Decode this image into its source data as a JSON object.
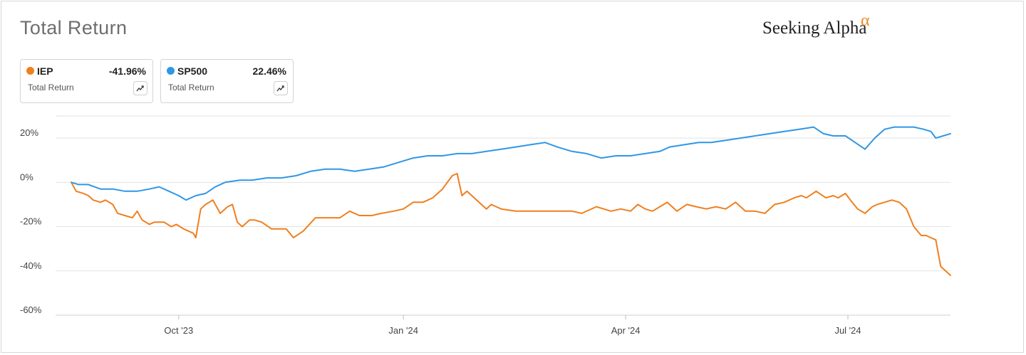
{
  "header": {
    "title": "Total Return",
    "brand": "Seeking Alpha",
    "brand_mark": "α"
  },
  "legend": [
    {
      "ticker": "IEP",
      "value": "-41.96%",
      "subtitle": "Total Return",
      "color": "#f07f1f",
      "button_icon": "trend-chart-icon"
    },
    {
      "ticker": "SP500",
      "value": "22.46%",
      "subtitle": "Total Return",
      "color": "#2f97e6",
      "button_icon": "trend-chart-icon"
    }
  ],
  "chart_data": {
    "type": "line",
    "title": "Total Return",
    "y_unit": "%",
    "ylim": [
      -60,
      30
    ],
    "y_ticks": [
      20,
      0,
      -20,
      -40,
      -60
    ],
    "y_tick_labels": [
      "20%",
      "0%",
      "-20%",
      "-40%",
      "-60%"
    ],
    "xlim": [
      "2023-08-18",
      "2024-08-12"
    ],
    "x_ticks": [
      "2023-10-01",
      "2024-01-01",
      "2024-04-01",
      "2024-07-01"
    ],
    "x_tick_labels": [
      "Oct '23",
      "Jan '24",
      "Apr '24",
      "Jul '24"
    ],
    "grid": true,
    "series": [
      {
        "name": "IEP",
        "color": "#f07f1f",
        "x": [
          "2023-08-18",
          "2023-08-20",
          "2023-08-23",
          "2023-08-25",
          "2023-08-27",
          "2023-08-30",
          "2023-09-01",
          "2023-09-04",
          "2023-09-06",
          "2023-09-09",
          "2023-09-12",
          "2023-09-14",
          "2023-09-16",
          "2023-09-19",
          "2023-09-21",
          "2023-09-23",
          "2023-09-25",
          "2023-09-28",
          "2023-09-30",
          "2023-10-03",
          "2023-10-05",
          "2023-10-07",
          "2023-10-08",
          "2023-10-10",
          "2023-10-12",
          "2023-10-15",
          "2023-10-18",
          "2023-10-21",
          "2023-10-23",
          "2023-10-25",
          "2023-10-27",
          "2023-10-30",
          "2023-11-01",
          "2023-11-04",
          "2023-11-08",
          "2023-11-14",
          "2023-11-17",
          "2023-11-21",
          "2023-11-26",
          "2023-11-28",
          "2023-12-02",
          "2023-12-06",
          "2023-12-10",
          "2023-12-14",
          "2023-12-19",
          "2023-12-23",
          "2023-12-28",
          "2024-01-01",
          "2024-01-05",
          "2024-01-09",
          "2024-01-13",
          "2024-01-17",
          "2024-01-21",
          "2024-01-23",
          "2024-01-25",
          "2024-01-27",
          "2024-01-31",
          "2024-02-04",
          "2024-02-06",
          "2024-02-10",
          "2024-02-16",
          "2024-02-22",
          "2024-02-28",
          "2024-03-05",
          "2024-03-10",
          "2024-03-14",
          "2024-03-20",
          "2024-03-26",
          "2024-03-30",
          "2024-04-03",
          "2024-04-06",
          "2024-04-09",
          "2024-04-12",
          "2024-04-15",
          "2024-04-18",
          "2024-04-22",
          "2024-04-26",
          "2024-04-30",
          "2024-05-04",
          "2024-05-08",
          "2024-05-12",
          "2024-05-16",
          "2024-05-20",
          "2024-05-24",
          "2024-05-28",
          "2024-06-01",
          "2024-06-05",
          "2024-06-09",
          "2024-06-12",
          "2024-06-14",
          "2024-06-18",
          "2024-06-22",
          "2024-06-25",
          "2024-06-27",
          "2024-06-30",
          "2024-07-02",
          "2024-07-05",
          "2024-07-08",
          "2024-07-11",
          "2024-07-13",
          "2024-07-16",
          "2024-07-19",
          "2024-07-22",
          "2024-07-25",
          "2024-07-28",
          "2024-07-31",
          "2024-08-02",
          "2024-08-04",
          "2024-08-06",
          "2024-08-08",
          "2024-08-10",
          "2024-08-12"
        ],
        "y": [
          0,
          -4,
          -5,
          -6,
          -8,
          -9,
          -8,
          -10,
          -14,
          -15,
          -16,
          -13,
          -17,
          -19,
          -18,
          -18,
          -18,
          -20,
          -19,
          -21,
          -22,
          -23,
          -25,
          -12,
          -10,
          -8,
          -14,
          -11,
          -10,
          -18,
          -20,
          -17,
          -17,
          -18,
          -21,
          -21,
          -25,
          -22,
          -16,
          -16,
          -16,
          -16,
          -13,
          -15,
          -15,
          -14,
          -13,
          -12,
          -9,
          -9,
          -7,
          -3,
          3,
          4,
          -6,
          -4,
          -8,
          -12,
          -10,
          -12,
          -13,
          -13,
          -13,
          -13,
          -13,
          -14,
          -11,
          -13,
          -12,
          -13,
          -10,
          -12,
          -13,
          -11,
          -9,
          -13,
          -10,
          -11,
          -12,
          -11,
          -12,
          -9,
          -13,
          -13,
          -14,
          -10,
          -9,
          -7,
          -6,
          -7,
          -4,
          -7,
          -6,
          -7,
          -5,
          -8,
          -12,
          -14,
          -11,
          -10,
          -9,
          -8,
          -9,
          -12,
          -20,
          -24,
          -24,
          -25,
          -26,
          -38,
          -40,
          -42
        ]
      },
      {
        "name": "SP500",
        "color": "#2f97e6",
        "x": [
          "2023-08-18",
          "2023-08-21",
          "2023-08-25",
          "2023-08-30",
          "2023-09-04",
          "2023-09-09",
          "2023-09-14",
          "2023-09-19",
          "2023-09-23",
          "2023-09-27",
          "2023-10-01",
          "2023-10-04",
          "2023-10-08",
          "2023-10-12",
          "2023-10-16",
          "2023-10-20",
          "2023-10-26",
          "2023-10-31",
          "2023-11-06",
          "2023-11-12",
          "2023-11-18",
          "2023-11-24",
          "2023-11-30",
          "2023-12-06",
          "2023-12-12",
          "2023-12-18",
          "2023-12-24",
          "2023-12-30",
          "2024-01-05",
          "2024-01-11",
          "2024-01-17",
          "2024-01-23",
          "2024-01-29",
          "2024-02-04",
          "2024-02-10",
          "2024-02-16",
          "2024-02-22",
          "2024-02-28",
          "2024-03-04",
          "2024-03-10",
          "2024-03-16",
          "2024-03-22",
          "2024-03-28",
          "2024-04-03",
          "2024-04-09",
          "2024-04-15",
          "2024-04-19",
          "2024-04-25",
          "2024-05-01",
          "2024-05-06",
          "2024-05-12",
          "2024-05-18",
          "2024-05-24",
          "2024-05-30",
          "2024-06-05",
          "2024-06-11",
          "2024-06-17",
          "2024-06-21",
          "2024-06-25",
          "2024-06-30",
          "2024-07-04",
          "2024-07-08",
          "2024-07-12",
          "2024-07-16",
          "2024-07-20",
          "2024-07-24",
          "2024-07-28",
          "2024-08-01",
          "2024-08-04",
          "2024-08-06",
          "2024-08-09",
          "2024-08-12"
        ],
        "y": [
          0,
          -1,
          -1,
          -3,
          -3,
          -4,
          -4,
          -3,
          -2,
          -4,
          -6,
          -8,
          -6,
          -5,
          -2,
          0,
          1,
          1,
          2,
          2,
          3,
          5,
          6,
          6,
          5,
          6,
          7,
          9,
          11,
          12,
          12,
          13,
          13,
          14,
          15,
          16,
          17,
          18,
          16,
          14,
          13,
          11,
          12,
          12,
          13,
          14,
          16,
          17,
          18,
          18,
          19,
          20,
          21,
          22,
          23,
          24,
          25,
          22,
          21,
          21,
          18,
          15,
          20,
          24,
          25,
          25,
          25,
          24,
          23,
          20,
          21,
          22
        ]
      }
    ]
  }
}
